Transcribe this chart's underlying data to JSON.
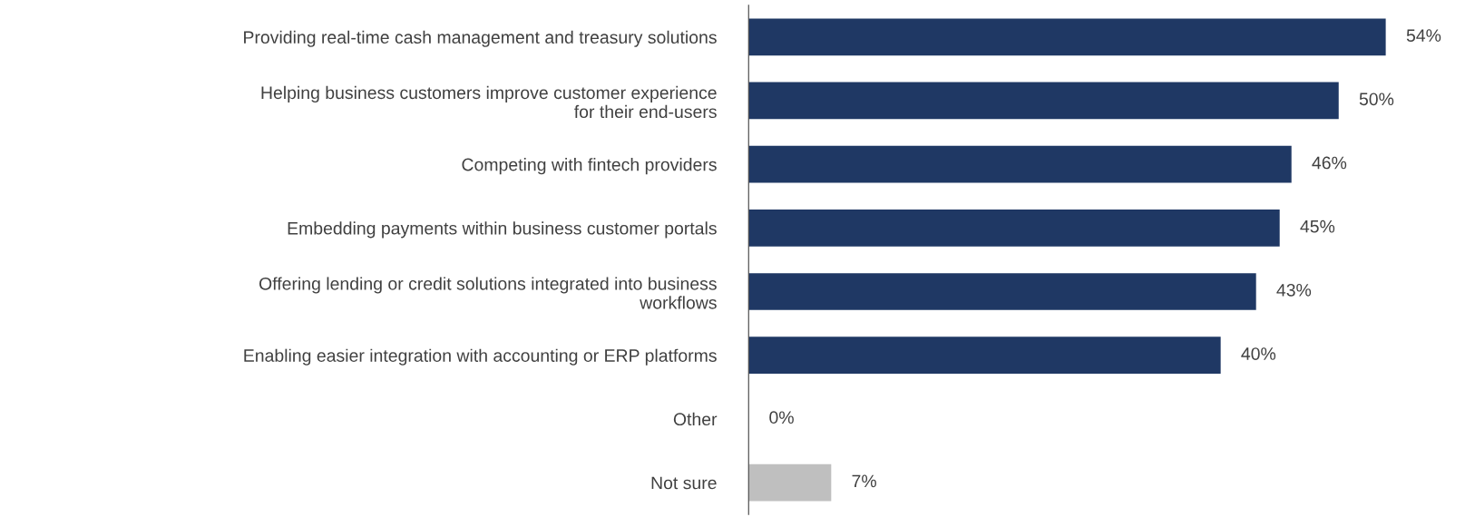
{
  "chart_data": {
    "type": "bar",
    "orientation": "horizontal",
    "categories": [
      "Providing real-time cash management and treasury solutions",
      "Helping business customers improve customer experience\nfor their end-users",
      "Competing with fintech providers",
      "Embedding payments within business customer portals",
      "Offering lending or credit solutions integrated into business\nworkflows",
      "Enabling easier integration with accounting or ERP platforms",
      "Other",
      "Not sure"
    ],
    "values": [
      54,
      50,
      46,
      45,
      43,
      40,
      0,
      7
    ],
    "colors": [
      "#1f3864",
      "#1f3864",
      "#1f3864",
      "#1f3864",
      "#1f3864",
      "#1f3864",
      "#bfbfbf",
      "#bfbfbf"
    ],
    "value_labels": [
      "54%",
      "50%",
      "46%",
      "45%",
      "43%",
      "40%",
      "0%",
      "7%"
    ],
    "grid": false,
    "legend": false
  }
}
